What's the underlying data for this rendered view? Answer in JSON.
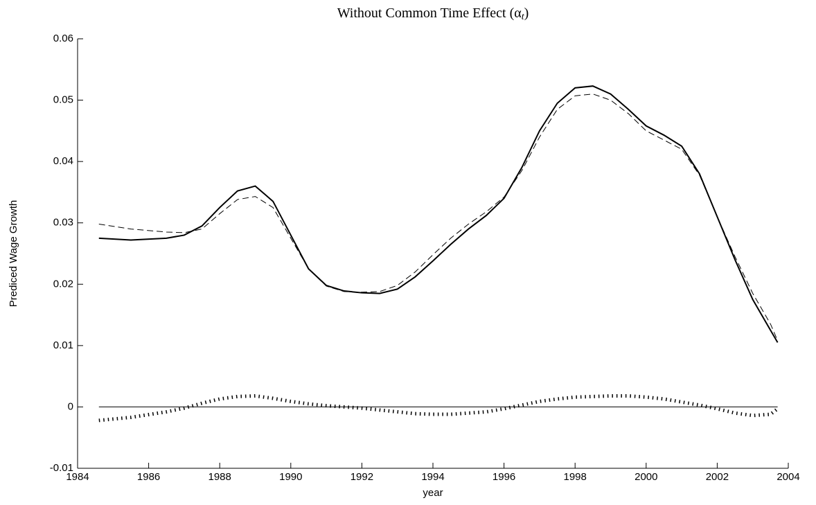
{
  "chart_data": {
    "type": "line",
    "title": [
      "Without Common Time Effect (α",
      "t",
      ")"
    ],
    "xlabel": "year",
    "ylabel": "Prediced Wage Growth",
    "x": [
      1984.6,
      1985.5,
      1986.5,
      1987,
      1987.5,
      1988,
      1988.5,
      1989,
      1989.5,
      1990,
      1990.5,
      1991,
      1991.5,
      1992,
      1992.5,
      1993,
      1993.5,
      1994,
      1994.5,
      1995,
      1995.5,
      1996,
      1996.5,
      1997,
      1997.5,
      1998,
      1998.5,
      1999,
      1999.5,
      2000,
      2000.5,
      2001,
      2001.5,
      2002,
      2002.5,
      2003,
      2003.5,
      2003.7
    ],
    "series": [
      {
        "color": "#000000",
        "style": "solid",
        "values": [
          0.0275,
          0.0272,
          0.0275,
          0.028,
          0.0295,
          0.0325,
          0.0352,
          0.036,
          0.0335,
          0.028,
          0.0225,
          0.0198,
          0.0189,
          0.0186,
          0.0185,
          0.0192,
          0.0212,
          0.0238,
          0.0265,
          0.029,
          0.0312,
          0.034,
          0.039,
          0.045,
          0.0495,
          0.052,
          0.0523,
          0.051,
          0.0485,
          0.0458,
          0.0443,
          0.0425,
          0.038,
          0.031,
          0.024,
          0.0175,
          0.0125,
          0.0105
        ]
      },
      {
        "color": "#000000",
        "style": "dashed",
        "values": [
          0.0298,
          0.029,
          0.0285,
          0.0284,
          0.029,
          0.0315,
          0.0338,
          0.0343,
          0.0325,
          0.0275,
          0.0225,
          0.0197,
          0.0188,
          0.0187,
          0.0188,
          0.0198,
          0.022,
          0.0248,
          0.0275,
          0.0298,
          0.0318,
          0.0342,
          0.0385,
          0.044,
          0.0485,
          0.0507,
          0.051,
          0.05,
          0.0478,
          0.045,
          0.0435,
          0.042,
          0.0378,
          0.031,
          0.0245,
          0.0185,
          0.0135,
          0.0108
        ]
      },
      {
        "color": "#000000",
        "style": "dotted",
        "values": [
          -0.0022,
          -0.0017,
          -0.0008,
          -0.0002,
          0.0006,
          0.0013,
          0.0017,
          0.0018,
          0.0014,
          0.0009,
          0.0005,
          0.0002,
          0,
          -0.0002,
          -0.0005,
          -0.0008,
          -0.0011,
          -0.0012,
          -0.0012,
          -0.001,
          -0.0008,
          -0.0003,
          0.0003,
          0.0009,
          0.0013,
          0.0016,
          0.0017,
          0.0018,
          0.0018,
          0.0016,
          0.0013,
          0.0008,
          0.0003,
          -0.0003,
          -0.001,
          -0.0014,
          -0.0012,
          -0.0003
        ]
      }
    ],
    "reference_line": 0,
    "xlim": [
      1984,
      2004
    ],
    "xticks": [
      1984,
      1986,
      1988,
      1990,
      1992,
      1994,
      1996,
      1998,
      2000,
      2002,
      2004
    ],
    "ylim": [
      -0.01,
      0.06
    ],
    "yticks": [
      -0.01,
      0,
      0.01,
      0.02,
      0.03,
      0.04,
      0.05,
      0.06
    ],
    "grid": false
  }
}
